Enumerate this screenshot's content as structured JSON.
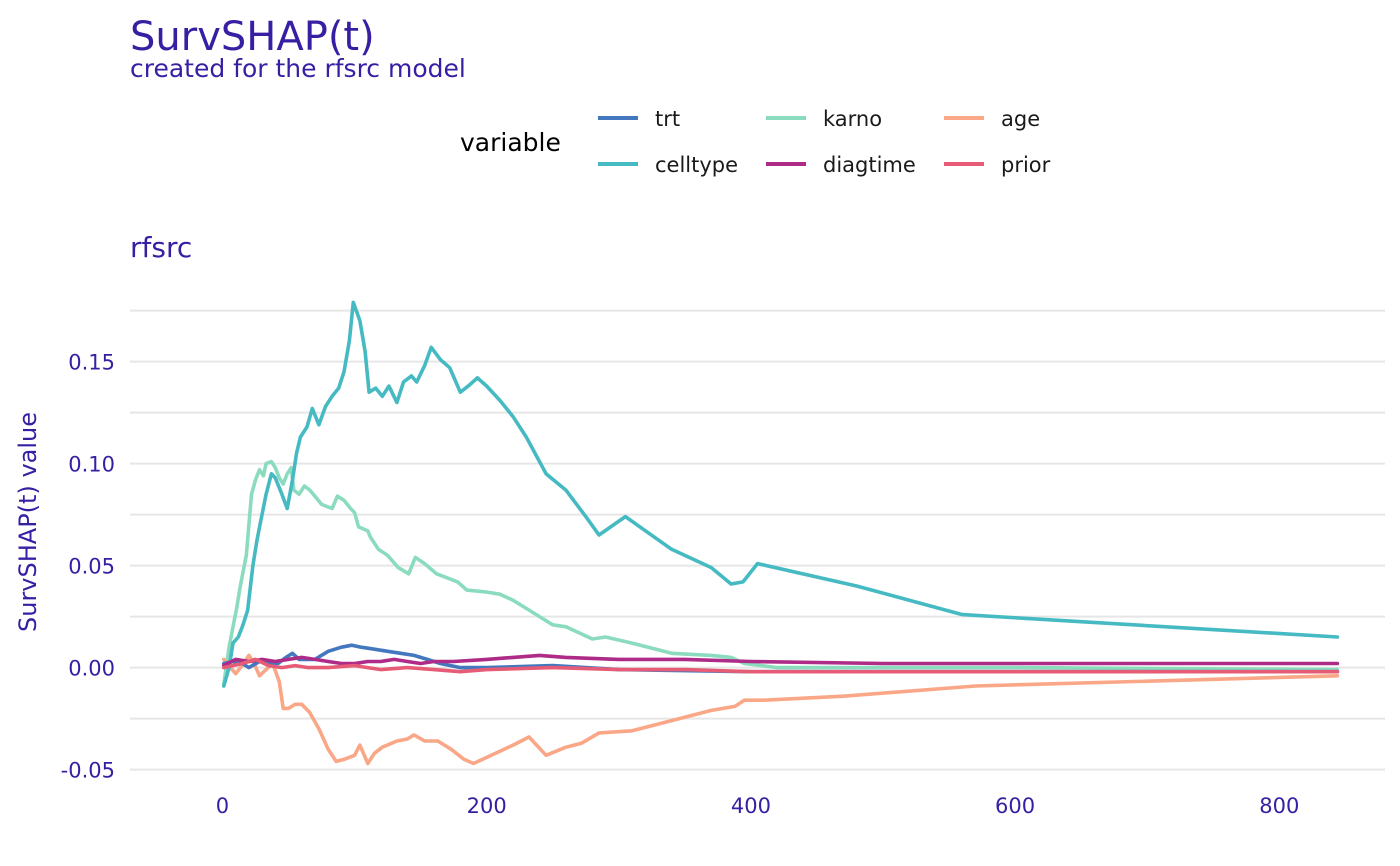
{
  "chart_data": {
    "type": "line",
    "title": "SurvSHAP(t)",
    "subtitle": "created for the rfsrc model",
    "panel_label": "rfsrc",
    "xlabel": "",
    "ylabel": "SurvSHAP(t) value",
    "xlim": [
      -70,
      880
    ],
    "ylim": [
      -0.06,
      0.19
    ],
    "x_ticks": [
      0,
      200,
      400,
      600,
      800
    ],
    "y_ticks": [
      -0.05,
      0.0,
      0.05,
      0.1,
      0.15
    ],
    "y_tick_labels": [
      "-0.05",
      "0.00",
      "0.05",
      "0.10",
      "0.15"
    ],
    "grid": true,
    "legend": {
      "title": "variable",
      "position": "top",
      "entries": [
        "trt",
        "celltype",
        "karno",
        "diagtime",
        "age",
        "prior"
      ]
    },
    "series": [
      {
        "name": "karno",
        "color": "#8bdcbe",
        "points": [
          [
            1,
            -0.008
          ],
          [
            5,
            0.01
          ],
          [
            8,
            0.02
          ],
          [
            11,
            0.03
          ],
          [
            13,
            0.038
          ],
          [
            15,
            0.045
          ],
          [
            18,
            0.055
          ],
          [
            20,
            0.07
          ],
          [
            22,
            0.085
          ],
          [
            25,
            0.092
          ],
          [
            28,
            0.097
          ],
          [
            31,
            0.094
          ],
          [
            33,
            0.1
          ],
          [
            37,
            0.101
          ],
          [
            40,
            0.098
          ],
          [
            43,
            0.093
          ],
          [
            46,
            0.09
          ],
          [
            49,
            0.095
          ],
          [
            52,
            0.098
          ],
          [
            54,
            0.087
          ],
          [
            58,
            0.085
          ],
          [
            62,
            0.089
          ],
          [
            66,
            0.087
          ],
          [
            70,
            0.084
          ],
          [
            75,
            0.08
          ],
          [
            83,
            0.078
          ],
          [
            87,
            0.084
          ],
          [
            92,
            0.082
          ],
          [
            97,
            0.078
          ],
          [
            100,
            0.076
          ],
          [
            103,
            0.069
          ],
          [
            110,
            0.067
          ],
          [
            112,
            0.064
          ],
          [
            118,
            0.058
          ],
          [
            125,
            0.055
          ],
          [
            133,
            0.049
          ],
          [
            141,
            0.046
          ],
          [
            146,
            0.054
          ],
          [
            153,
            0.051
          ],
          [
            162,
            0.046
          ],
          [
            170,
            0.044
          ],
          [
            178,
            0.042
          ],
          [
            185,
            0.038
          ],
          [
            200,
            0.037
          ],
          [
            210,
            0.036
          ],
          [
            220,
            0.033
          ],
          [
            230,
            0.029
          ],
          [
            240,
            0.025
          ],
          [
            250,
            0.021
          ],
          [
            260,
            0.02
          ],
          [
            270,
            0.017
          ],
          [
            280,
            0.014
          ],
          [
            290,
            0.015
          ],
          [
            310,
            0.012
          ],
          [
            340,
            0.007
          ],
          [
            370,
            0.006
          ],
          [
            385,
            0.005
          ],
          [
            395,
            0.002
          ],
          [
            420,
            0.0
          ],
          [
            500,
            0.0
          ],
          [
            600,
            0.0
          ],
          [
            844,
            -0.001
          ]
        ]
      },
      {
        "name": "age",
        "color": "#f9a787",
        "points": [
          [
            1,
            0.004
          ],
          [
            6,
            0.0
          ],
          [
            10,
            -0.003
          ],
          [
            16,
            0.002
          ],
          [
            20,
            0.006
          ],
          [
            24,
            0.002
          ],
          [
            28,
            -0.004
          ],
          [
            33,
            -0.001
          ],
          [
            38,
            0.002
          ],
          [
            43,
            -0.007
          ],
          [
            46,
            -0.02
          ],
          [
            50,
            -0.02
          ],
          [
            55,
            -0.018
          ],
          [
            60,
            -0.018
          ],
          [
            66,
            -0.022
          ],
          [
            73,
            -0.03
          ],
          [
            80,
            -0.04
          ],
          [
            86,
            -0.046
          ],
          [
            92,
            -0.045
          ],
          [
            100,
            -0.043
          ],
          [
            104,
            -0.038
          ],
          [
            110,
            -0.047
          ],
          [
            115,
            -0.042
          ],
          [
            121,
            -0.039
          ],
          [
            132,
            -0.036
          ],
          [
            140,
            -0.035
          ],
          [
            145,
            -0.033
          ],
          [
            153,
            -0.036
          ],
          [
            163,
            -0.036
          ],
          [
            173,
            -0.04
          ],
          [
            183,
            -0.045
          ],
          [
            190,
            -0.047
          ],
          [
            200,
            -0.044
          ],
          [
            210,
            -0.041
          ],
          [
            220,
            -0.038
          ],
          [
            232,
            -0.034
          ],
          [
            245,
            -0.043
          ],
          [
            260,
            -0.039
          ],
          [
            272,
            -0.037
          ],
          [
            285,
            -0.032
          ],
          [
            310,
            -0.031
          ],
          [
            340,
            -0.026
          ],
          [
            370,
            -0.021
          ],
          [
            388,
            -0.019
          ],
          [
            395,
            -0.016
          ],
          [
            410,
            -0.016
          ],
          [
            470,
            -0.014
          ],
          [
            570,
            -0.009
          ],
          [
            844,
            -0.004
          ]
        ]
      },
      {
        "name": "celltype",
        "color": "#46bac2",
        "points": [
          [
            1,
            -0.009
          ],
          [
            5,
            0.0
          ],
          [
            8,
            0.012
          ],
          [
            12,
            0.015
          ],
          [
            15,
            0.02
          ],
          [
            19,
            0.028
          ],
          [
            23,
            0.05
          ],
          [
            26,
            0.062
          ],
          [
            29,
            0.072
          ],
          [
            33,
            0.085
          ],
          [
            37,
            0.095
          ],
          [
            40,
            0.093
          ],
          [
            45,
            0.085
          ],
          [
            49,
            0.078
          ],
          [
            53,
            0.092
          ],
          [
            56,
            0.105
          ],
          [
            59,
            0.113
          ],
          [
            64,
            0.118
          ],
          [
            68,
            0.127
          ],
          [
            73,
            0.119
          ],
          [
            78,
            0.128
          ],
          [
            83,
            0.133
          ],
          [
            88,
            0.137
          ],
          [
            92,
            0.145
          ],
          [
            96,
            0.16
          ],
          [
            99,
            0.179
          ],
          [
            104,
            0.17
          ],
          [
            108,
            0.155
          ],
          [
            111,
            0.135
          ],
          [
            116,
            0.137
          ],
          [
            121,
            0.133
          ],
          [
            126,
            0.138
          ],
          [
            132,
            0.13
          ],
          [
            137,
            0.14
          ],
          [
            143,
            0.143
          ],
          [
            147,
            0.14
          ],
          [
            153,
            0.148
          ],
          [
            158,
            0.157
          ],
          [
            165,
            0.151
          ],
          [
            172,
            0.147
          ],
          [
            180,
            0.135
          ],
          [
            186,
            0.138
          ],
          [
            193,
            0.142
          ],
          [
            200,
            0.138
          ],
          [
            210,
            0.131
          ],
          [
            220,
            0.123
          ],
          [
            230,
            0.113
          ],
          [
            245,
            0.095
          ],
          [
            260,
            0.087
          ],
          [
            275,
            0.074
          ],
          [
            285,
            0.065
          ],
          [
            305,
            0.074
          ],
          [
            340,
            0.058
          ],
          [
            370,
            0.049
          ],
          [
            385,
            0.041
          ],
          [
            394,
            0.042
          ],
          [
            405,
            0.051
          ],
          [
            480,
            0.04
          ],
          [
            560,
            0.026
          ],
          [
            844,
            0.015
          ]
        ]
      },
      {
        "name": "trt",
        "color": "#4378bf",
        "points": [
          [
            1,
            0.002
          ],
          [
            8,
            0.003
          ],
          [
            15,
            0.002
          ],
          [
            20,
            0.0
          ],
          [
            28,
            0.003
          ],
          [
            35,
            0.002
          ],
          [
            42,
            0.002
          ],
          [
            48,
            0.005
          ],
          [
            53,
            0.007
          ],
          [
            58,
            0.004
          ],
          [
            70,
            0.004
          ],
          [
            80,
            0.008
          ],
          [
            90,
            0.01
          ],
          [
            98,
            0.011
          ],
          [
            105,
            0.01
          ],
          [
            115,
            0.009
          ],
          [
            125,
            0.008
          ],
          [
            135,
            0.007
          ],
          [
            145,
            0.006
          ],
          [
            155,
            0.004
          ],
          [
            165,
            0.002
          ],
          [
            180,
            0.0
          ],
          [
            200,
            0.0
          ],
          [
            250,
            0.001
          ],
          [
            300,
            -0.001
          ],
          [
            400,
            -0.002
          ],
          [
            500,
            -0.002
          ],
          [
            600,
            -0.002
          ],
          [
            844,
            -0.002
          ]
        ]
      },
      {
        "name": "diagtime",
        "color": "#ae2c87",
        "points": [
          [
            1,
            0.001
          ],
          [
            10,
            0.004
          ],
          [
            20,
            0.003
          ],
          [
            30,
            0.004
          ],
          [
            40,
            0.003
          ],
          [
            50,
            0.004
          ],
          [
            60,
            0.005
          ],
          [
            70,
            0.004
          ],
          [
            80,
            0.003
          ],
          [
            90,
            0.002
          ],
          [
            100,
            0.002
          ],
          [
            110,
            0.003
          ],
          [
            120,
            0.003
          ],
          [
            130,
            0.004
          ],
          [
            140,
            0.003
          ],
          [
            150,
            0.002
          ],
          [
            160,
            0.003
          ],
          [
            175,
            0.003
          ],
          [
            200,
            0.004
          ],
          [
            220,
            0.005
          ],
          [
            240,
            0.006
          ],
          [
            260,
            0.005
          ],
          [
            300,
            0.004
          ],
          [
            350,
            0.004
          ],
          [
            400,
            0.003
          ],
          [
            500,
            0.002
          ],
          [
            600,
            0.002
          ],
          [
            844,
            0.002
          ]
        ]
      },
      {
        "name": "prior",
        "color": "#e65c76",
        "points": [
          [
            1,
            0.0
          ],
          [
            15,
            0.002
          ],
          [
            25,
            0.004
          ],
          [
            35,
            0.001
          ],
          [
            45,
            0.0
          ],
          [
            55,
            0.001
          ],
          [
            65,
            0.0
          ],
          [
            80,
            0.0
          ],
          [
            100,
            0.001
          ],
          [
            120,
            -0.001
          ],
          [
            140,
            0.0
          ],
          [
            160,
            -0.001
          ],
          [
            180,
            -0.002
          ],
          [
            200,
            -0.001
          ],
          [
            250,
            0.0
          ],
          [
            300,
            -0.001
          ],
          [
            350,
            -0.001
          ],
          [
            400,
            -0.002
          ],
          [
            500,
            -0.002
          ],
          [
            600,
            -0.002
          ],
          [
            844,
            -0.002
          ]
        ]
      }
    ]
  }
}
